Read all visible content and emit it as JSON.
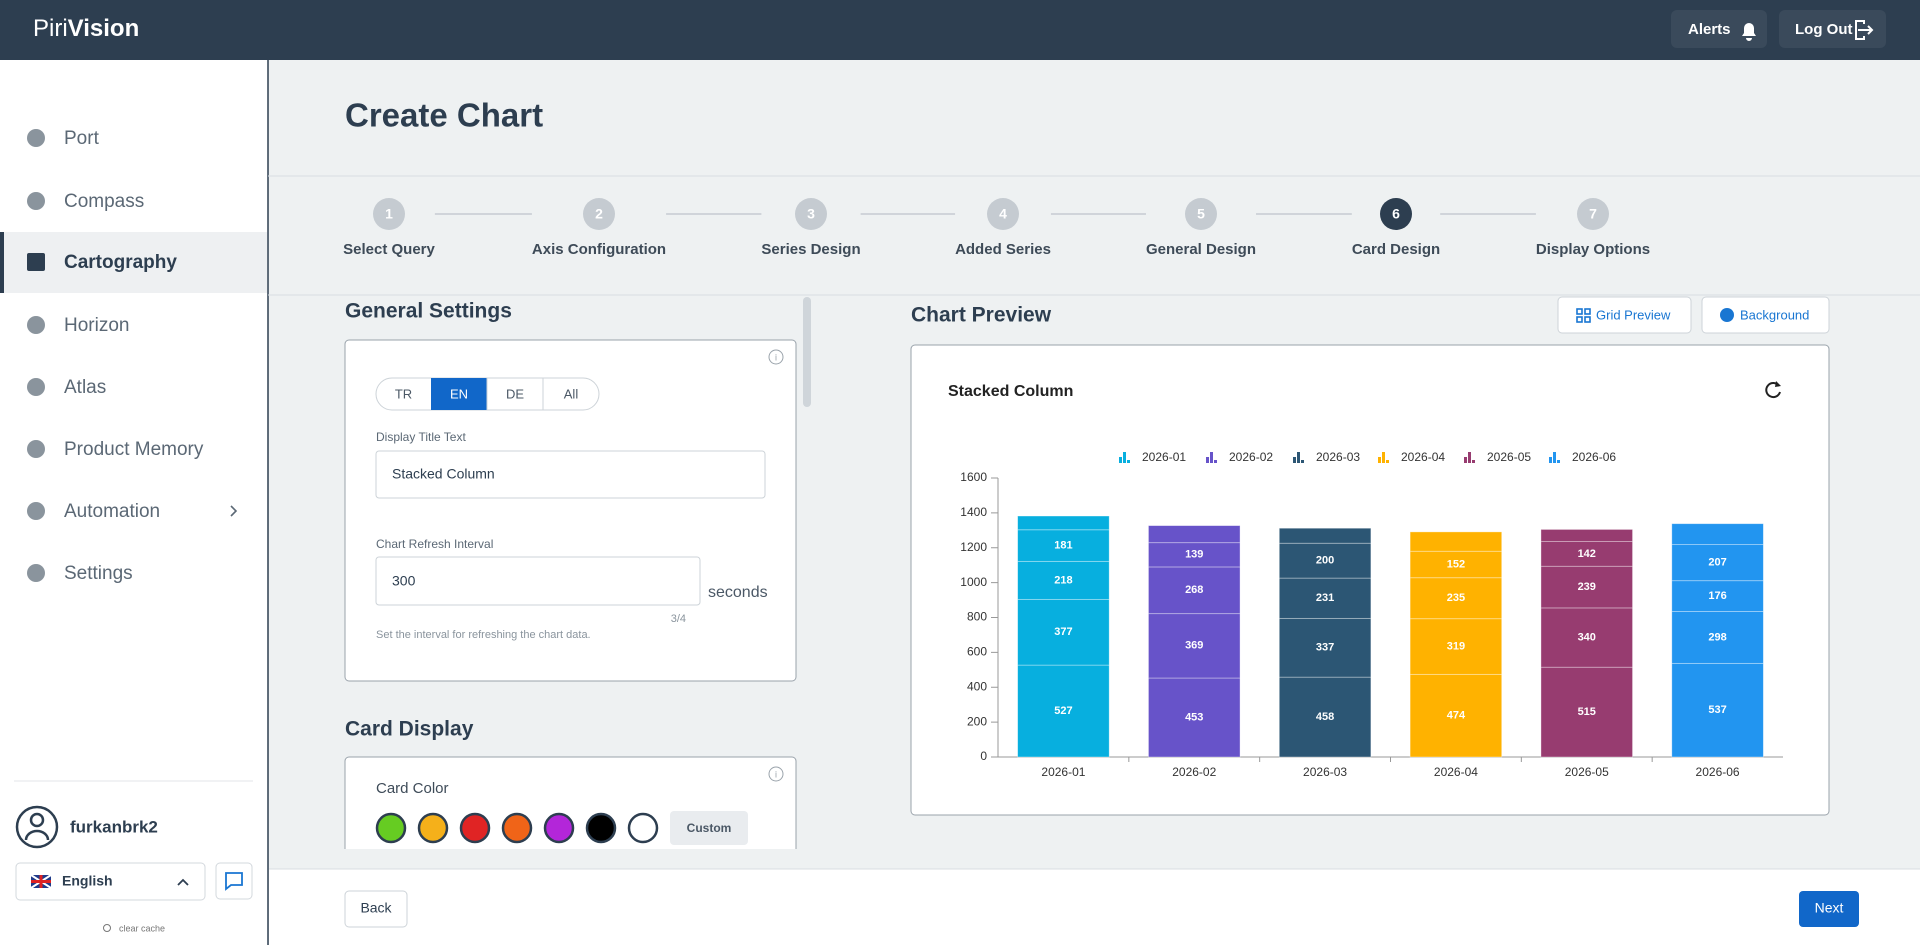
{
  "header": {
    "logo_a": "Piri",
    "logo_b": "Vision",
    "alerts": "Alerts",
    "logout": "Log Out"
  },
  "sidebar": {
    "items": [
      {
        "label": "Port"
      },
      {
        "label": "Compass"
      },
      {
        "label": "Cartography",
        "active": true
      },
      {
        "label": "Horizon"
      },
      {
        "label": "Atlas"
      },
      {
        "label": "Product Memory"
      },
      {
        "label": "Automation",
        "submenu": true
      },
      {
        "label": "Settings"
      }
    ],
    "user": "furkanbrk2",
    "language": "English",
    "clear_cache": "clear cache"
  },
  "page": {
    "title": "Create Chart",
    "current_step": 6,
    "steps": [
      {
        "number": "1",
        "label": "Select Query"
      },
      {
        "number": "2",
        "label": "Axis Configuration"
      },
      {
        "number": "3",
        "label": "Series Design"
      },
      {
        "number": "4",
        "label": "Added Series"
      },
      {
        "number": "5",
        "label": "General Design"
      },
      {
        "number": "6",
        "label": "Card Design"
      },
      {
        "number": "7",
        "label": "Display Options"
      }
    ]
  },
  "general_settings": {
    "heading": "General Settings",
    "languages": [
      "TR",
      "EN",
      "DE",
      "All"
    ],
    "language_selected": "EN",
    "title_label": "Display Title Text",
    "title_value": "Stacked Column",
    "refresh_label": "Chart Refresh Interval",
    "refresh_value": "300",
    "refresh_unit": "seconds",
    "refresh_counter": "3/4",
    "refresh_help": "Set the interval for refreshing the chart data."
  },
  "card_display": {
    "heading": "Card Display",
    "card_color_label": "Card Color",
    "swatches": [
      "#66cc22",
      "#f5b01a",
      "#e02424",
      "#f06418",
      "#b326d9",
      "#000000",
      "#ffffff"
    ],
    "custom": "Custom"
  },
  "preview": {
    "heading": "Chart Preview",
    "grid_preview": "Grid Preview",
    "background": "Background"
  },
  "footer": {
    "back": "Back",
    "next": "Next"
  },
  "chart_data": {
    "type": "stacked_bar",
    "title": "Stacked Column",
    "categories": [
      "2026-01",
      "2026-02",
      "2026-03",
      "2026-04",
      "2026-05",
      "2026-06"
    ],
    "colors": [
      "#07afdf",
      "#6753c9",
      "#2c5674",
      "#ffb200",
      "#973c70",
      "#2295f0"
    ],
    "series": [
      {
        "values": [
          527,
          453,
          458,
          474,
          515,
          537
        ]
      },
      {
        "values": [
          377,
          369,
          337,
          319,
          340,
          298
        ]
      },
      {
        "values": [
          218,
          268,
          231,
          235,
          239,
          176
        ]
      },
      {
        "values": [
          181,
          139,
          200,
          152,
          142,
          207
        ]
      },
      {
        "values": [
          79,
          98,
          86,
          111,
          69,
          120
        ]
      }
    ],
    "ylim": [
      0,
      1600
    ],
    "yticks": [
      0,
      200,
      400,
      600,
      800,
      1000,
      1200,
      1400,
      1600
    ]
  }
}
